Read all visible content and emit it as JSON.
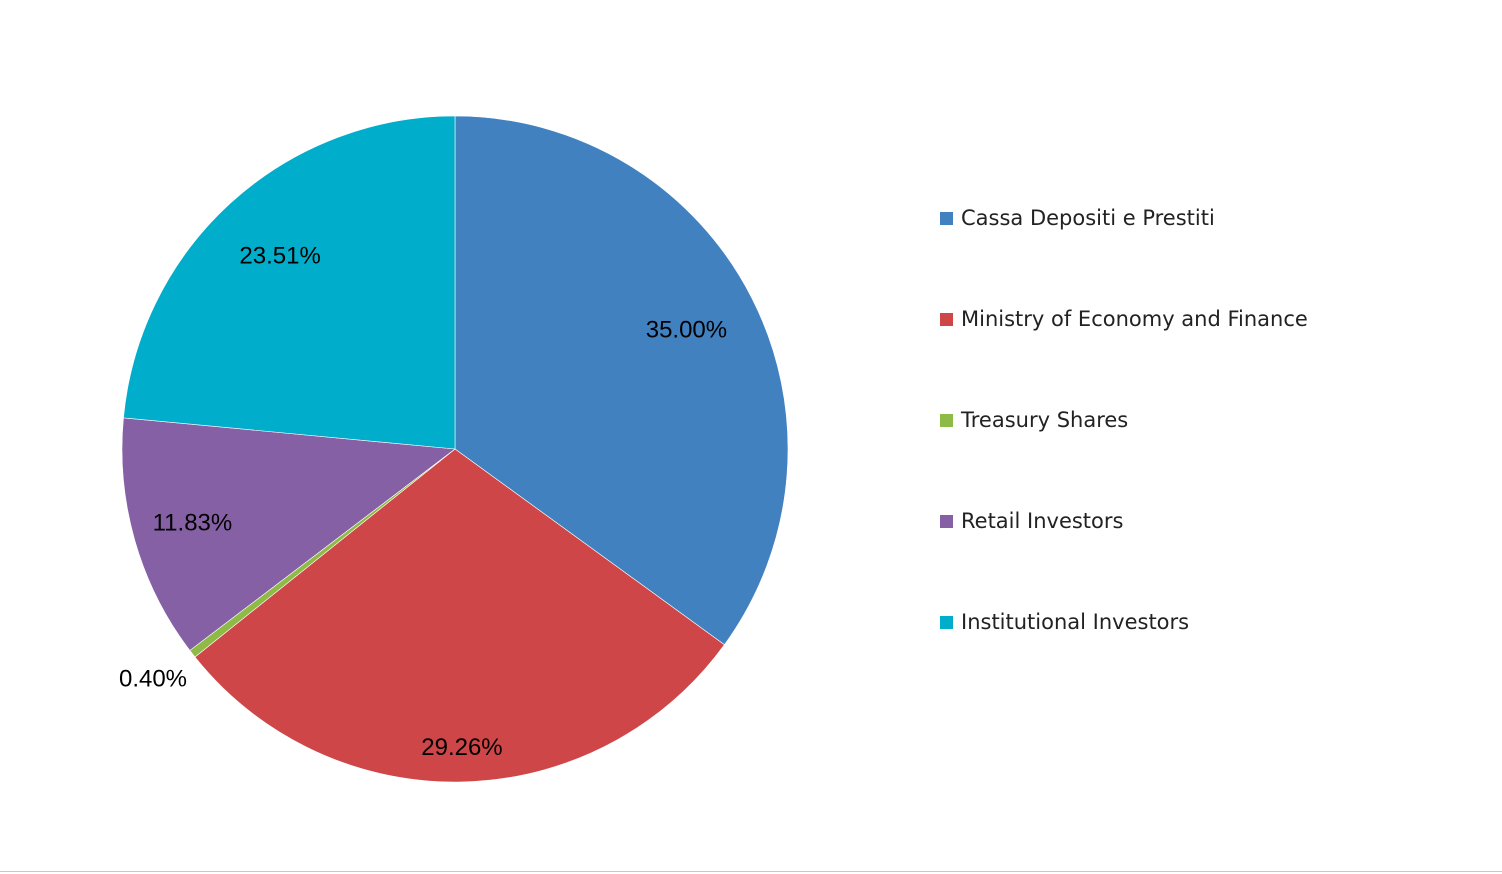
{
  "chart_data": {
    "type": "pie",
    "title": "",
    "legend_position": "right",
    "start_angle_deg": 0,
    "direction": "clockwise",
    "slices": [
      {
        "label": "Cassa Depositi e Prestiti",
        "value": 35.0,
        "display": "35.00%",
        "color": "#4181C0"
      },
      {
        "label": "Ministry of Economy and Finance",
        "value": 29.26,
        "display": "29.26%",
        "color": "#CE4647"
      },
      {
        "label": "Treasury Shares",
        "value": 0.4,
        "display": "0.40%",
        "color": "#8DBB45"
      },
      {
        "label": "Retail Investors",
        "value": 11.83,
        "display": "11.83%",
        "color": "#8660A5"
      },
      {
        "label": "Institutional Investors",
        "value": 23.51,
        "display": "23.51%",
        "color": "#00AECB"
      }
    ]
  }
}
